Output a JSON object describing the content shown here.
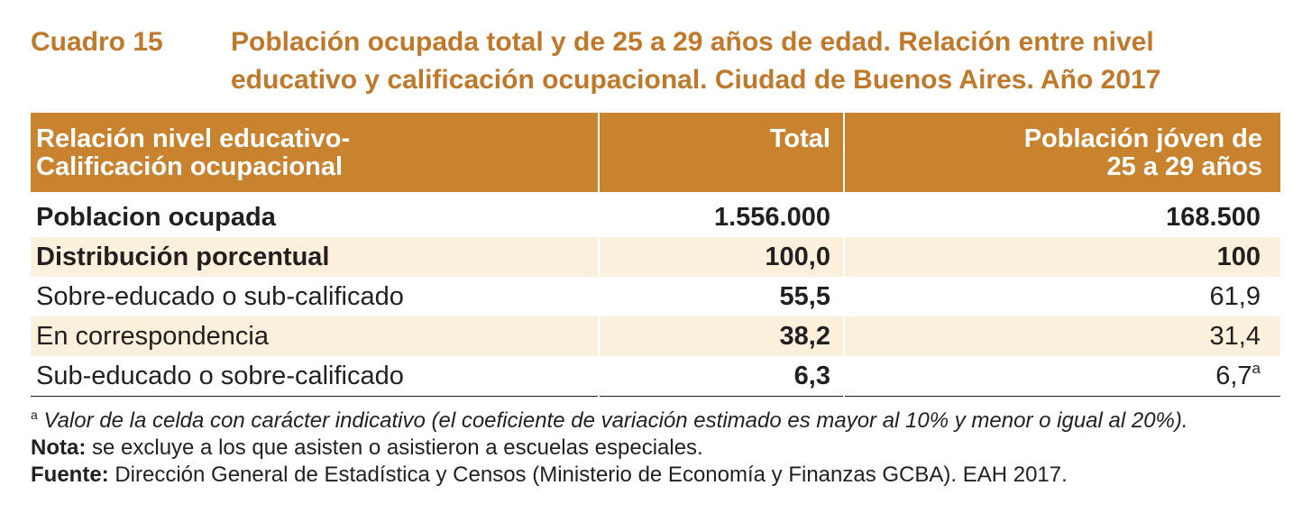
{
  "heading": {
    "label": "Cuadro 15",
    "title": "Población ocupada total y de 25 a 29 años de edad. Relación entre nivel educativo y calificación ocupacional. Ciudad de Buenos Aires. Año 2017"
  },
  "table": {
    "headers": {
      "col1": "Relación nivel educativo-",
      "col1b": "Calificación ocupacional",
      "col2": "Total",
      "col3": "Población jóven de",
      "col3b": "25 a 29 años"
    },
    "rows": [
      {
        "label": "Poblacion ocupada",
        "total": "1.556.000",
        "young": "168.500"
      },
      {
        "label": "Distribución porcentual",
        "total": "100,0",
        "young": "100"
      },
      {
        "label": "Sobre-educado o sub-calificado",
        "total": "55,5",
        "young": "61,9"
      },
      {
        "label": "En correspondencia",
        "total": "38,2",
        "young": "31,4"
      },
      {
        "label": "Sub-educado o sobre-calificado",
        "total": "6,3",
        "young": "6,7",
        "young_note": "a"
      }
    ]
  },
  "footer": {
    "note_mark": "a",
    "note_text": " Valor de la celda con carácter indicativo (el coeficiente de variación estimado es mayor al 10% y menor o igual al 20%).",
    "nota_label": "Nota:",
    "nota_text": " se excluye a los que asisten o asistieron a escuelas especiales.",
    "fuente_label": "Fuente:",
    "fuente_text": " Dirección General de Estadística y Censos (Ministerio de Economía y Finanzas GCBA). EAH 2017."
  },
  "colors": {
    "accent": "#c0782a",
    "header_bg": "#c9832f",
    "row_shade": "#fbf0dc"
  }
}
